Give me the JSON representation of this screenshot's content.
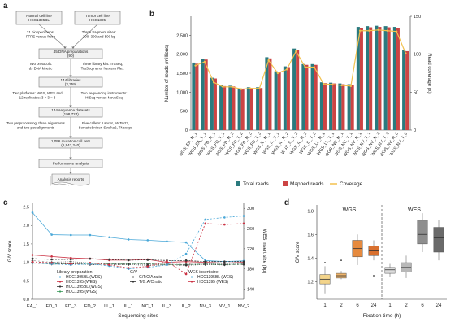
{
  "panel_labels": {
    "a": "a",
    "b": "b",
    "c": "c",
    "d": "d"
  },
  "flowchart": {
    "top_left": [
      "Normal cell line",
      "HCC1395BL"
    ],
    "top_right": [
      "Tumor cell line",
      "HCC1395"
    ],
    "step_bioprep": [
      "31 biospecimens:",
      "FFPE versus fresh"
    ],
    "step_fragment": [
      "Three fragment sizes:",
      "200, 300 and 500 bp"
    ],
    "box_dna": [
      "45 DNA preparations",
      "(90)"
    ],
    "step_protocols": [
      "Two protocols:",
      "ds DNA kinetic"
    ],
    "step_library": [
      "Three library kits: TruSeq,",
      "TruSeq-nano, Nextera Flex"
    ],
    "box_libraries": [
      "144 libraries",
      "(3,359)"
    ],
    "step_platforms": [
      "Two platforms: WGS, WES and",
      "12 replicates: 3 × 3 = 3"
    ],
    "step_instruments": [
      "Two sequencing instruments:",
      "HiSeq versus NovaSeq"
    ],
    "box_datasets": [
      "144 sequence datasets",
      "(198,724)"
    ],
    "step_aligners": [
      "Two preprocessing, three alignments",
      "and two postalignments"
    ],
    "step_callers": [
      "Five callers: Lancet, MuTect2,",
      "SomaticSniper, Strelka2, TNscope"
    ],
    "box_callsets": [
      "1,056 mutation call sets",
      "(6,942,240)"
    ],
    "box_performance": "Performance analysis",
    "box_reports": "Analysis reports"
  },
  "chart_data": [
    {
      "panel": "b",
      "type": "bar",
      "ylabel": "Number of reads (millions)",
      "y2label": "Read coverage (x)",
      "ylim": [
        0,
        3000
      ],
      "y2lim": [
        0,
        150
      ],
      "yticks": [
        0,
        500,
        1000,
        1500,
        2000,
        2500
      ],
      "y2ticks": [
        0,
        50,
        100,
        150
      ],
      "categories": [
        "WGS_EA_N_1",
        "WGS_EA_T_1",
        "WGS_FD_N_1",
        "WGS_FD_T_1",
        "WGS_FD_N_2",
        "WGS_FD_T_2",
        "WGS_FD_N_3",
        "WGS_FD_T_3",
        "WGS_IL_N_1",
        "WGS_IL_T_1",
        "WGS_IL_N_2",
        "WGS_IL_T_2",
        "WGS_IL_N_3",
        "WGS_IL_T_3",
        "WGS_LL_N_1",
        "WGS_LL_T_1",
        "WGS_NC_N_1",
        "WGS_NC_T_1",
        "WGS_NV_N_1",
        "WGS_NV_T_1",
        "WGS_NV_N_2",
        "WGS_NV_T_2",
        "WGS_NV_N_3",
        "WGS_NV_T_3"
      ],
      "series": [
        {
          "name": "Total reads",
          "color": "#2a7a7e",
          "values": [
            1780,
            1880,
            1380,
            1180,
            1170,
            1090,
            1130,
            1130,
            1920,
            1550,
            1680,
            2150,
            1740,
            1740,
            1260,
            1250,
            1230,
            1210,
            2720,
            2740,
            2750,
            2740,
            2720,
            2100
          ]
        },
        {
          "name": "Mapped reads",
          "color": "#cc4444",
          "values": [
            1750,
            1860,
            1360,
            1160,
            1150,
            1070,
            1110,
            1110,
            1890,
            1530,
            1660,
            2120,
            1720,
            1720,
            1240,
            1230,
            1210,
            1190,
            2690,
            2710,
            2720,
            2710,
            2690,
            2080
          ]
        },
        {
          "name": "Coverage",
          "color": "#f2c14e",
          "values": [
            85,
            90,
            63,
            57,
            57,
            54,
            55,
            55,
            92,
            75,
            80,
            104,
            83,
            83,
            61,
            60,
            59,
            58,
            131,
            131,
            132,
            131,
            130,
            101
          ]
        }
      ],
      "legend": "bottom"
    },
    {
      "panel": "c",
      "type": "line",
      "xlabel": "Sequencing sites",
      "ylabel": "G/V score",
      "y2label": "WES insert size (bp)",
      "ylim": [
        0,
        2.6
      ],
      "y2lim": [
        120,
        310
      ],
      "yticks": [
        0,
        0.5,
        1.0,
        1.5,
        2.0,
        2.5
      ],
      "y2ticks": [
        140,
        180,
        220,
        260,
        300
      ],
      "categories": [
        "EA_1",
        "FD_1",
        "FD_3",
        "FD_2",
        "LL_1",
        "IL_1",
        "NC_1",
        "IL_3",
        "IL_2",
        "NV_3",
        "NV_1",
        "NV_2"
      ],
      "legend_titles": [
        "Library preparation",
        "G/V",
        "WES insert size"
      ],
      "series": [
        {
          "name": "HCC1395BL (WES)",
          "color": "#4aa8d8",
          "values": [
            2.35,
            1.75,
            1.74,
            1.74,
            1.68,
            1.62,
            1.6,
            1.57,
            1.54,
            1.05,
            1.02,
            1.04
          ]
        },
        {
          "name": "HCC1395 (WES)",
          "color": "#cc3344",
          "values": [
            1.2,
            1.16,
            1.12,
            1.1,
            1.06,
            1.06,
            1.08,
            1.0,
            1.02,
            1.0,
            0.98,
            1.0
          ]
        },
        {
          "name": "HCC1395BL (WGS)",
          "color": "#333333",
          "values": [
            1.1,
            1.08,
            1.08,
            1.1,
            1.08,
            1.06,
            1.07,
            1.05,
            1.05,
            1.02,
            1.02,
            1.02
          ]
        },
        {
          "name": "HCC1395 (WGS)",
          "color": "#3a9a5a",
          "values": [
            0.98,
            0.97,
            0.96,
            0.97,
            0.96,
            0.95,
            0.96,
            0.94,
            0.94,
            0.95,
            0.94,
            0.95
          ]
        },
        {
          "name": "G/T:C/A ratio",
          "color": "#555555",
          "values": [
            1.05,
            1.0,
            1.02,
            0.98,
            0.96,
            0.96,
            0.95,
            0.95,
            0.94,
            0.96,
            0.95,
            0.96
          ]
        },
        {
          "name": "T/G:A/C ratio",
          "color": "#333333",
          "values": [
            0.98,
            0.95,
            0.96,
            0.94,
            0.93,
            0.94,
            0.92,
            0.93,
            0.92,
            0.94,
            0.93,
            0.94
          ]
        },
        {
          "name": "HCC1395BL (WES)",
          "color": "#4aa8d8",
          "axis": "y2",
          "values": [
            192,
            190,
            188,
            190,
            186,
            180,
            183,
            188,
            210,
            278,
            282,
            285
          ]
        },
        {
          "name": "HCC1395 (WES)",
          "color": "#cc3344",
          "axis": "y2",
          "values": [
            194,
            192,
            190,
            192,
            188,
            182,
            185,
            195,
            170,
            270,
            268,
            270
          ]
        }
      ]
    },
    {
      "panel": "d",
      "type": "box",
      "xlabel": "Fixation time (h)",
      "ylabel": "G/V score",
      "ylim": [
        1.05,
        1.85
      ],
      "yticks": [
        1.2,
        1.4,
        1.6,
        1.8
      ],
      "groups": [
        {
          "label": "WGS",
          "boxes": [
            {
              "x": "1",
              "color": "#f3d48a",
              "q1": 1.18,
              "median": 1.22,
              "q3": 1.26,
              "min": 1.1,
              "max": 1.33,
              "outliers": [
                1.36
              ]
            },
            {
              "x": "2",
              "color": "#eeb36a",
              "q1": 1.23,
              "median": 1.25,
              "q3": 1.27,
              "min": 1.22,
              "max": 1.29,
              "outliers": [
                1.38
              ]
            },
            {
              "x": "6",
              "color": "#e68a3e",
              "q1": 1.41,
              "median": 1.48,
              "q3": 1.55,
              "min": 1.34,
              "max": 1.6,
              "outliers": []
            },
            {
              "x": "24",
              "color": "#d9702e",
              "q1": 1.42,
              "median": 1.46,
              "q3": 1.5,
              "min": 1.38,
              "max": 1.55,
              "outliers": [
                1.25
              ]
            }
          ]
        },
        {
          "label": "WES",
          "boxes": [
            {
              "x": "1",
              "color": "#dcdcdc",
              "q1": 1.27,
              "median": 1.3,
              "q3": 1.32,
              "min": 1.24,
              "max": 1.35,
              "outliers": []
            },
            {
              "x": "2",
              "color": "#b8b8b8",
              "q1": 1.28,
              "median": 1.32,
              "q3": 1.36,
              "min": 1.23,
              "max": 1.42,
              "outliers": []
            },
            {
              "x": "6",
              "color": "#8e8e8e",
              "q1": 1.52,
              "median": 1.6,
              "q3": 1.72,
              "min": 1.45,
              "max": 1.78,
              "outliers": []
            },
            {
              "x": "24",
              "color": "#6a6a6a",
              "q1": 1.45,
              "median": 1.57,
              "q3": 1.66,
              "min": 1.38,
              "max": 1.72,
              "outliers": []
            }
          ]
        }
      ]
    }
  ]
}
